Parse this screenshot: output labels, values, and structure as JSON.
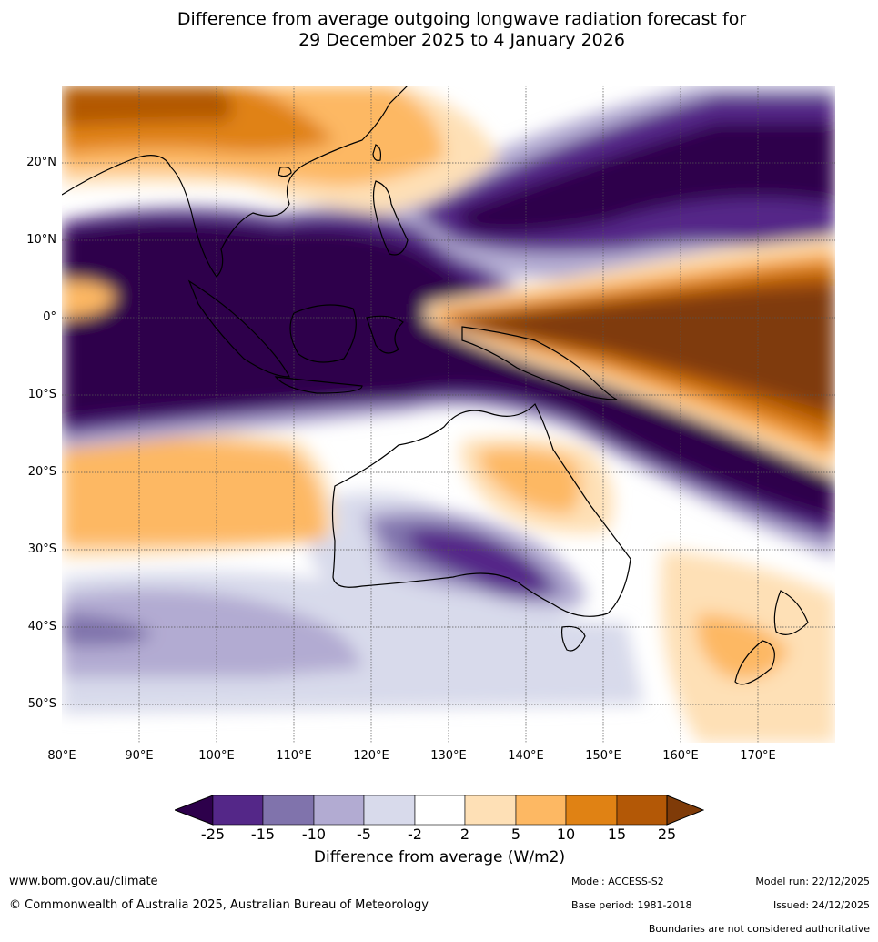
{
  "title": {
    "line1": "Difference from average outgoing longwave radiation forecast for",
    "line2": "29 December 2025 to 4 January 2026"
  },
  "map": {
    "lat_labels": [
      "20°N",
      "10°N",
      "0°",
      "10°S",
      "20°S",
      "30°S",
      "40°S",
      "50°S"
    ],
    "lon_labels": [
      "80°E",
      "90°E",
      "100°E",
      "110°E",
      "120°E",
      "130°E",
      "140°E",
      "150°E",
      "160°E",
      "170°E"
    ]
  },
  "colorbar": {
    "ticks": [
      "-25",
      "-15",
      "-10",
      "-5",
      "-2",
      "2",
      "5",
      "10",
      "15",
      "25"
    ],
    "colors": [
      "#2d004b",
      "#542788",
      "#8073ac",
      "#b2abd2",
      "#d8daeb",
      "#ffffff",
      "#fee0b6",
      "#fdb863",
      "#e08214",
      "#b35806",
      "#7f3b08"
    ],
    "label": "Difference from average (W/m2)"
  },
  "footer": {
    "website": "www.bom.gov.au/climate",
    "copyright": "© Commonwealth of Australia 2025, Australian Bureau of Meteorology",
    "model": "Model: ACCESS-S2",
    "base_period": "Base period: 1981-2018",
    "model_run": "Model run: 22/12/2025",
    "issued": "Issued: 24/12/2025",
    "disclaimer": "Boundaries are not considered authoritative"
  }
}
